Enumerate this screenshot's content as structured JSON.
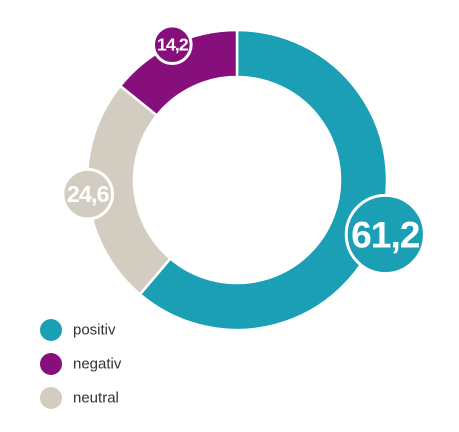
{
  "chart_data": {
    "type": "donut",
    "categories": [
      "positiv",
      "negativ",
      "neutral"
    ],
    "values": [
      61.2,
      14.2,
      24.6
    ],
    "value_labels": [
      "61,2",
      "14,2",
      "24,6"
    ],
    "colors": [
      "#1a9fb5",
      "#870f7b",
      "#d3ccc1"
    ]
  }
}
